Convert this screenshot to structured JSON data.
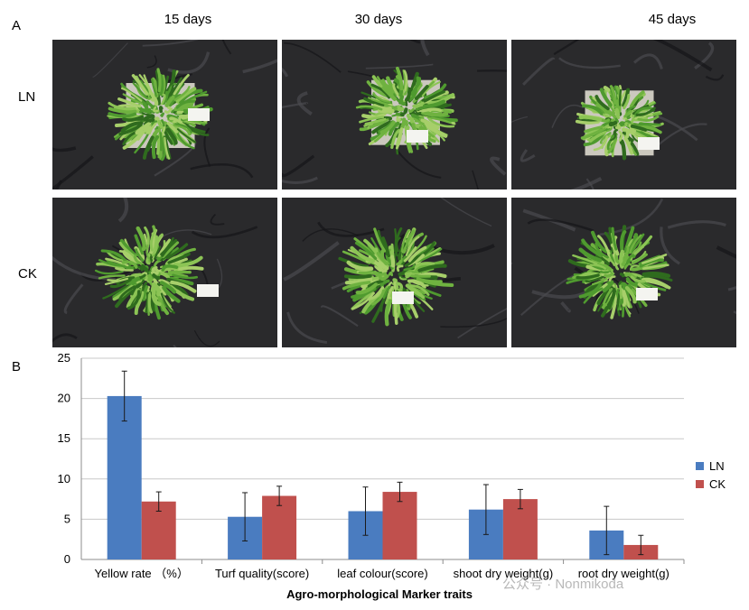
{
  "panel_a": {
    "label": "A",
    "columns": [
      "15 days",
      "30 days",
      "45 days"
    ],
    "rows": [
      "LN",
      "CK"
    ],
    "photos": [
      {
        "name": "ln-15-days-photo",
        "tag": "LN 15d"
      },
      {
        "name": "ln-30-days-photo",
        "tag": "LN 30d"
      },
      {
        "name": "ln-45-days-photo",
        "tag": "LN 45d"
      },
      {
        "name": "ck-15-days-photo",
        "tag": "CK 15d"
      },
      {
        "name": "ck-30-days-photo",
        "tag": "CK 30d"
      },
      {
        "name": "ck-45-days-photo",
        "tag": "CK 45d"
      }
    ],
    "colors": {
      "cloth": "#2a2a2c",
      "leaf": "#4f9a2f",
      "leaf_light": "#8cc455",
      "leaf_dark": "#2f6b1e",
      "pot": "#e8e4d8"
    }
  },
  "panel_b": {
    "label": "B"
  },
  "chart_data": {
    "type": "bar",
    "categories": [
      "Yellow rate （%）",
      "Turf quality(score)",
      "leaf colour(score)",
      "shoot dry weight(g)",
      "root dry weight(g)"
    ],
    "series": [
      {
        "name": "LN",
        "color": "#4a7cc0",
        "values": [
          20.3,
          5.3,
          6.0,
          6.2,
          3.6
        ],
        "errors": [
          3.1,
          3.0,
          3.0,
          3.1,
          3.0
        ]
      },
      {
        "name": "CK",
        "color": "#c0504d",
        "values": [
          7.2,
          7.9,
          8.4,
          7.5,
          1.8
        ],
        "errors": [
          1.2,
          1.2,
          1.2,
          1.2,
          1.2
        ]
      }
    ],
    "xlabel": "Agro-morphological Marker traits",
    "ylabel": "",
    "ylim": [
      0,
      25
    ],
    "yticks": [
      0,
      5,
      10,
      15,
      20,
      25
    ],
    "grid": true,
    "legend_position": "right"
  },
  "watermark": "公众号 · Nonmikoda"
}
